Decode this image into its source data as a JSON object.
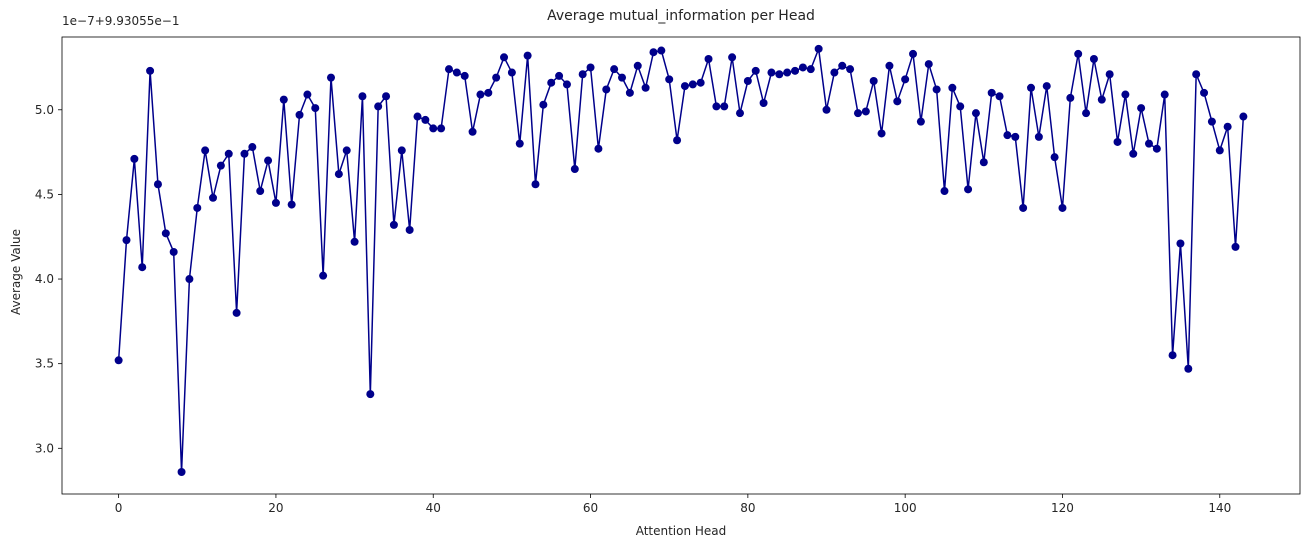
{
  "chart_data": {
    "type": "line",
    "title": "Average mutual_information per Head",
    "xlabel": "Attention Head",
    "ylabel": "Average Value",
    "offset_text": "1e−7+9.93055e−1",
    "xlim": [
      -7.2,
      150.2
    ],
    "ylim": [
      2.73,
      5.43
    ],
    "xticks": [
      0,
      20,
      40,
      60,
      80,
      100,
      120,
      140
    ],
    "xtick_labels": [
      "0",
      "20",
      "40",
      "60",
      "80",
      "100",
      "120",
      "140"
    ],
    "yticks": [
      3.0,
      3.5,
      4.0,
      4.5,
      5.0
    ],
    "ytick_labels": [
      "3.0",
      "3.5",
      "4.0",
      "4.5",
      "5.0"
    ],
    "grid": false,
    "marker": "circle",
    "color": "#00008b",
    "series": [
      {
        "x": [
          0,
          1,
          2,
          3,
          4,
          5,
          6,
          7,
          8,
          9,
          10,
          11,
          12,
          13,
          14,
          15,
          16,
          17,
          18,
          19,
          20,
          21,
          22,
          23,
          24,
          25,
          26,
          27,
          28,
          29,
          30,
          31,
          32,
          33,
          34,
          35,
          36,
          37,
          38,
          39,
          40,
          41,
          42,
          43,
          44,
          45,
          46,
          47,
          48,
          49,
          50,
          51,
          52,
          53,
          54,
          55,
          56,
          57,
          58,
          59,
          60,
          61,
          62,
          63,
          64,
          65,
          66,
          67,
          68,
          69,
          70,
          71,
          72,
          73,
          74,
          75,
          76,
          77,
          78,
          79,
          80,
          81,
          82,
          83,
          84,
          85,
          86,
          87,
          88,
          89,
          90,
          91,
          92,
          93,
          94,
          95,
          96,
          97,
          98,
          99,
          100,
          101,
          102,
          103,
          104,
          105,
          106,
          107,
          108,
          109,
          110,
          111,
          112,
          113,
          114,
          115,
          116,
          117,
          118,
          119,
          120,
          121,
          122,
          123,
          124,
          125,
          126,
          127,
          128,
          129,
          130,
          131,
          132,
          133,
          134,
          135,
          136,
          137,
          138,
          139,
          140,
          141,
          142,
          143
        ],
        "values": [
          3.52,
          4.23,
          4.71,
          4.07,
          5.23,
          4.56,
          4.27,
          4.16,
          2.86,
          4.0,
          4.42,
          4.76,
          4.48,
          4.67,
          4.74,
          3.8,
          4.74,
          4.78,
          4.52,
          4.7,
          4.45,
          5.06,
          4.44,
          4.97,
          5.09,
          5.01,
          4.02,
          5.19,
          4.62,
          4.76,
          4.22,
          5.08,
          3.32,
          5.02,
          5.08,
          4.32,
          4.76,
          4.29,
          4.96,
          4.94,
          4.89,
          4.89,
          5.24,
          5.22,
          5.2,
          4.87,
          5.09,
          5.1,
          5.19,
          5.31,
          5.22,
          4.8,
          5.32,
          4.56,
          5.03,
          5.16,
          5.2,
          5.15,
          4.65,
          5.21,
          5.25,
          4.77,
          5.12,
          5.24,
          5.19,
          5.1,
          5.26,
          5.13,
          5.34,
          5.35,
          5.18,
          4.82,
          5.14,
          5.15,
          5.16,
          5.3,
          5.02,
          5.02,
          5.31,
          4.98,
          5.17,
          5.23,
          5.04,
          5.22,
          5.21,
          5.22,
          5.23,
          5.25,
          5.24,
          5.36,
          5.0,
          5.22,
          5.26,
          5.24,
          4.98,
          4.99,
          5.17,
          4.86,
          5.26,
          5.05,
          5.18,
          5.33,
          4.93,
          5.27,
          5.12,
          4.52,
          5.13,
          5.02,
          4.53,
          4.98,
          4.69,
          5.1,
          5.08,
          4.85,
          4.84,
          4.42,
          5.13,
          4.84,
          5.14,
          4.72,
          4.42,
          5.07,
          5.33,
          4.98,
          5.3,
          5.06,
          5.21,
          4.81,
          5.09,
          4.74,
          5.01,
          4.8,
          4.77,
          5.09,
          3.55,
          4.21,
          3.47,
          5.21,
          5.1,
          4.93,
          4.76,
          4.9,
          4.19,
          4.96
        ]
      }
    ]
  }
}
